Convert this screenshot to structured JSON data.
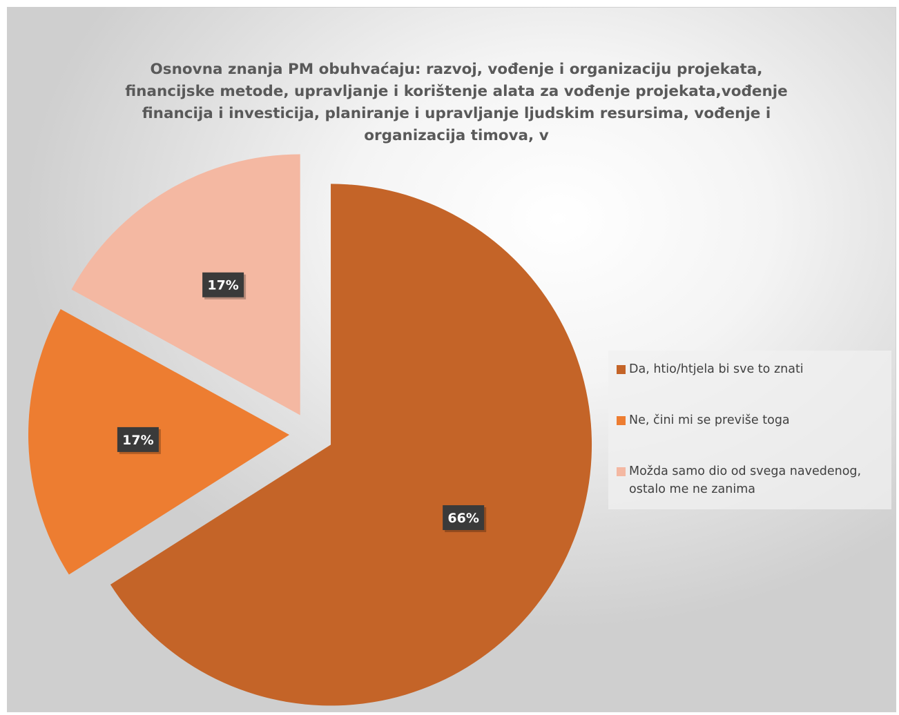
{
  "chart_data": {
    "type": "pie",
    "title": "Osnovna znanja PM obuhvaćaju: razvoj, vođenje i organizaciju projekata, financijske metode, upravljanje i korištenje alata za vođenje projekata,vođenje financija i investicija, planiranje i upravljanje ljudskim resursima, vođenje i organizacija timova,  v",
    "categories": [
      "Da, htio/htjela bi sve to znati",
      "Ne, čini mi se previše toga",
      "Možda samo dio od svega navedenog, ostalo me ne zanima"
    ],
    "values": [
      66,
      17,
      17
    ],
    "data_labels": [
      "66%",
      "17%",
      "17%"
    ],
    "colors": [
      "#C46428",
      "#ED7D31",
      "#F4B8A2"
    ],
    "exploded": true,
    "legend_position": "right"
  },
  "legend": {
    "items": [
      {
        "label": "Da, htio/htjela bi sve to znati",
        "color": "#C46428"
      },
      {
        "label": "Ne, čini mi se previše toga",
        "color": "#ED7D31"
      },
      {
        "label": "Možda samo dio od svega navedenog, ostalo me ne zanima",
        "color": "#F4B8A2"
      }
    ]
  }
}
